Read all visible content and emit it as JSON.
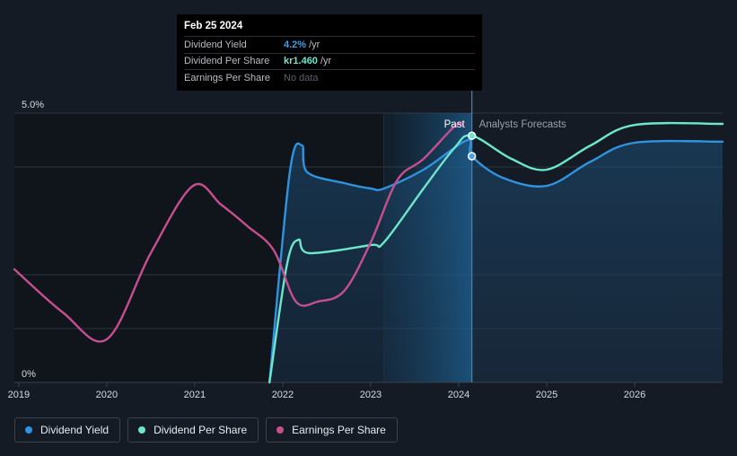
{
  "tooltip": {
    "date": "Feb 25 2024",
    "rows": [
      {
        "label": "Dividend Yield",
        "value": "4.2%",
        "unit": "/yr",
        "color": "#3f9fe8"
      },
      {
        "label": "Dividend Per Share",
        "value": "kr1.460",
        "unit": "/yr",
        "color": "#6de6cc"
      },
      {
        "label": "Earnings Per Share",
        "value": "No data",
        "unit": "",
        "color": "#5b6068"
      }
    ]
  },
  "legend": [
    {
      "label": "Dividend Yield",
      "color": "#2f93e0"
    },
    {
      "label": "Dividend Per Share",
      "color": "#6de6cc"
    },
    {
      "label": "Earnings Per Share",
      "color": "#c74f8f"
    }
  ],
  "chart_data": {
    "type": "line",
    "title": "",
    "xlabel": "",
    "ylabel": "",
    "xlim": [
      2018.95,
      2027.0
    ],
    "ylim": [
      0,
      5.0
    ],
    "x_ticks": [
      2019,
      2020,
      2021,
      2022,
      2023,
      2024,
      2025,
      2026
    ],
    "x_tick_labels": [
      "2019",
      "2020",
      "2021",
      "2022",
      "2023",
      "2024",
      "2025",
      "2026"
    ],
    "y_tick_labels": [
      {
        "value": 5.0,
        "label": "5.0%"
      },
      {
        "value": 0,
        "label": "0%"
      }
    ],
    "gridlines_y": [
      0,
      1.0,
      2.0,
      4.0,
      5.0
    ],
    "divider_x": 2024.15,
    "past_region_start": 2023.15,
    "past_label": "Past",
    "forecast_label": "Analysts Forecasts",
    "series": [
      {
        "name": "Dividend Yield",
        "color": "#2f93e0",
        "area": true,
        "points": [
          [
            2021.85,
            0
          ],
          [
            2022.08,
            3.9
          ],
          [
            2022.22,
            4.4
          ],
          [
            2022.28,
            3.9
          ],
          [
            2022.7,
            3.7
          ],
          [
            2023.0,
            3.6
          ],
          [
            2023.15,
            3.6
          ],
          [
            2023.6,
            3.95
          ],
          [
            2024.1,
            4.5
          ],
          [
            2024.15,
            4.2
          ],
          [
            2024.5,
            3.8
          ],
          [
            2025.0,
            3.65
          ],
          [
            2025.5,
            4.1
          ],
          [
            2026.0,
            4.45
          ],
          [
            2027.0,
            4.47
          ]
        ]
      },
      {
        "name": "Dividend Per Share",
        "color": "#6de6cc",
        "area": false,
        "points": [
          [
            2021.85,
            0
          ],
          [
            2022.05,
            2.2
          ],
          [
            2022.18,
            2.65
          ],
          [
            2022.3,
            2.4
          ],
          [
            2023.0,
            2.55
          ],
          [
            2023.15,
            2.6
          ],
          [
            2023.6,
            3.6
          ],
          [
            2023.95,
            4.35
          ],
          [
            2024.15,
            4.58
          ],
          [
            2024.6,
            4.15
          ],
          [
            2025.0,
            3.95
          ],
          [
            2025.5,
            4.4
          ],
          [
            2026.0,
            4.78
          ],
          [
            2027.0,
            4.8
          ]
        ]
      },
      {
        "name": "Earnings Per Share",
        "color": "#c74f8f",
        "area": false,
        "points": [
          [
            2018.95,
            2.1
          ],
          [
            2019.5,
            1.3
          ],
          [
            2020.0,
            0.8
          ],
          [
            2020.5,
            2.4
          ],
          [
            2020.98,
            3.65
          ],
          [
            2021.3,
            3.3
          ],
          [
            2021.6,
            2.9
          ],
          [
            2021.9,
            2.45
          ],
          [
            2022.15,
            1.5
          ],
          [
            2022.4,
            1.5
          ],
          [
            2022.7,
            1.7
          ],
          [
            2023.0,
            2.6
          ],
          [
            2023.3,
            3.75
          ],
          [
            2023.6,
            4.15
          ],
          [
            2023.95,
            4.75
          ],
          [
            2024.05,
            4.78
          ]
        ]
      }
    ]
  }
}
